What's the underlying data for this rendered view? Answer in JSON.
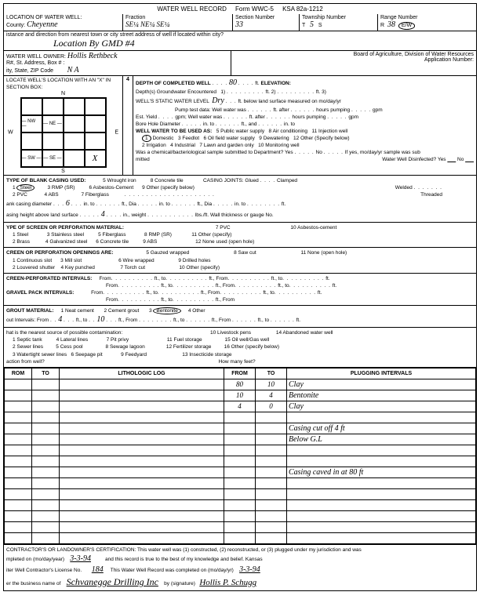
{
  "header": {
    "title": "WATER WELL RECORD",
    "form": "Form WWC-5",
    "ksa": "KSA 82a-1212"
  },
  "loc": {
    "label": "LOCATION OF WATER WELL:",
    "county_label": "County:",
    "county": "Cheyenne",
    "fraction_label": "Fraction",
    "fraction": "SE¼ NE¼ SE¼",
    "section_label": "Section Number",
    "section": "33",
    "township_label": "Township Number",
    "township_t": "T",
    "township": "5",
    "township_s": "S",
    "range_label": "Range Number",
    "range_r": "R",
    "range": "38",
    "range_ew": "E/W"
  },
  "street": {
    "label": "istance and direction from nearest town or city street address of well if located within city?",
    "value": "Location By GMD #4"
  },
  "owner": {
    "label": "WATER WELL OWNER:",
    "name": "Hollis Rethbeck",
    "addr_label": "R#, St. Address, Box # :",
    "city_label": "ity, State, ZIP Code",
    "na": "N A",
    "board": "Board of Agriculture, Division of Water Resources",
    "appno": "Application Number:"
  },
  "locate": {
    "label": "LOCATE WELL'S LOCATION WITH AN \"X\" IN SECTION BOX:",
    "n4": "4",
    "nw": "NW",
    "ne": "NE",
    "sw": "SW",
    "se": "SE",
    "x": "X",
    "N": "N",
    "S": "S",
    "E": "E",
    "W": "W"
  },
  "depth": {
    "title": "DEPTH OF COMPLETED WELL",
    "depth_val": "80",
    "ft": "ft.",
    "elev": "ELEVATION:",
    "groundwater": "Depth(s) Groundwater Encountered",
    "l1": "1)",
    "l2": "ft. 2)",
    "l3": "ft. 3)",
    "static_label": "WELL'S STATIC WATER LEVEL",
    "static": "Dry",
    "static_after": "ft. below land surface measured on mo/day/yr",
    "pump": "Pump test data:  Well water was",
    "pump_after": "ft. after",
    "hours": "hours pumping",
    "gpm": "gpm",
    "est": "Est. Yield",
    "gpm2": "gpm; Well water was",
    "bore": "Bore Hole Diameter",
    "in_to": "in. to",
    "ft_and": "ft., and",
    "in_to2": "in. to",
    "usedas": "WELL WATER TO BE USED AS:",
    "u1": "1 Domestic",
    "u2": "2 Irrigation",
    "u3": "3 Feedlot",
    "u4": "4 Industrial",
    "u5": "5 Public water supply",
    "u6": "6 Oil field water supply",
    "u7": "7 Lawn and garden only",
    "u8": "8 Air conditioning",
    "u9": "9 Dewatering",
    "u10": "10 Monitoring well",
    "u11": "11 Injection well",
    "u12": "12 Other (Specify below)",
    "chem": "Was a chemical/bacteriological sample submitted to Department? Yes",
    "chem_no": "No",
    "chem_if": "If yes, mo/day/yr sample was sub",
    "mitted": "mitted",
    "disinfect": "Water Well Disinfected?  Yes",
    "dis_no": "No"
  },
  "casing": {
    "title": "TYPE OF BLANK CASING USED:",
    "c1": "Steel",
    "c2": "2 PVC",
    "c3": "3 RMP (SR)",
    "c4": "4 ABS",
    "c5": "5 Wrought iron",
    "c6": "6 Asbestos-Cement",
    "c7": "7 Fiberglass",
    "c8": "8 Concrete tile",
    "c9": "9 Other (specify below)",
    "joints": "CASING JOINTS: Glued",
    "clamped": "Clamped",
    "welded": "Welded",
    "threaded": "Threaded",
    "dia_label": "ank casing diameter",
    "dia": "6",
    "dia_after": "in. to",
    "ft_dia": "ft., Dia",
    "in_to": "in. to",
    "height_label": "asing height above land surface",
    "height": "4",
    "weight": "in., weight",
    "lbs": "lbs./ft. Wall thickness or gauge No."
  },
  "screen": {
    "title": "YPE OF SCREEN OR PERFORATION MATERIAL:",
    "s1": "1 Steel",
    "s2": "2 Brass",
    "s3": "3 Stainless steel",
    "s4": "4 Galvanized steel",
    "s5": "5 Fiberglass",
    "s6": "6 Concrete tile",
    "s7": "7 PVC",
    "s8": "8 RMP (SR)",
    "s9": "9 ABS",
    "s10": "10 Asbestos-cement",
    "s11": "11 Other (specify)",
    "s12": "12 None used (open hole)"
  },
  "openings": {
    "title": "CREEN OR PERFORATION OPENINGS ARE:",
    "o1": "1 Continuous slot",
    "o2": "2 Louvered shutter",
    "o3": "3 Mill slot",
    "o4": "4 Key punched",
    "o5": "5 Gauzed wrapped",
    "o6": "6 Wire wrapped",
    "o7": "7 Torch cut",
    "o8": "8 Saw cut",
    "o9": "9 Drilled holes",
    "o10": "10 Other (specify)",
    "o11": "11 None (open hole)"
  },
  "intervals": {
    "title": "CREEN-PERFORATED INTERVALS:",
    "from": "From",
    "to": "ft., to",
    "ft_from": "ft., From",
    "ft_to": "ft., to",
    "ft": "ft.",
    "gravel": "GRAVEL PACK INTERVALS:"
  },
  "grout": {
    "title": "GROUT MATERIAL:",
    "g1": "1 Neat cement",
    "g2": "2 Cement grout",
    "g3": "Bentonite",
    "g4": "4 Other",
    "int_label": "out Intervals:    From",
    "from": "4",
    "to_label": "ft., to",
    "to": "10",
    "ft_from": "ft., From",
    "ft_to": "ft., to",
    "ft": "ft."
  },
  "contam": {
    "title": "hat is the nearest source of possible contamination:",
    "c1": "1 Septic tank",
    "c2": "2 Sewer lines",
    "c3": "3 Watertight sewer lines",
    "c4": "4 Lateral lines",
    "c5": "5 Cess pool",
    "c6": "6 Seepage pit",
    "c7": "7 Pit privy",
    "c8": "8 Sewage lagoon",
    "c9": "9 Feedyard",
    "c10": "10 Livestock pens",
    "c11": "11 Fuel storage",
    "c12": "12 Fertilizer storage",
    "c13": "13 Insecticide storage",
    "c14": "14 Abandoned water well",
    "c15": "15 Oil well/Gas well",
    "c16": "16 Other (specify below)",
    "action": "action from well?",
    "howmany": "How many feet?"
  },
  "log": {
    "h_rom": "ROM",
    "h_to": "TO",
    "h_lith": "LITHOLOGIC LOG",
    "h_from": "FROM",
    "h_to2": "TO",
    "h_plug": "PLUGGING INTERVALS",
    "rows": [
      {
        "from": "80",
        "to": "10",
        "plug": "Clay"
      },
      {
        "from": "10",
        "to": "4",
        "plug": "Bentonite"
      },
      {
        "from": "4",
        "to": "0",
        "plug": "Clay"
      },
      {
        "from": "",
        "to": "",
        "plug": ""
      },
      {
        "from": "",
        "to": "",
        "plug": "Casing cut off 4 ft"
      },
      {
        "from": "",
        "to": "",
        "plug": "Below G.L"
      },
      {
        "from": "",
        "to": "",
        "plug": ""
      },
      {
        "from": "",
        "to": "",
        "plug": ""
      },
      {
        "from": "",
        "to": "",
        "plug": "Casing caved in at 80 ft"
      },
      {
        "from": "",
        "to": "",
        "plug": ""
      },
      {
        "from": "",
        "to": "",
        "plug": ""
      },
      {
        "from": "",
        "to": "",
        "plug": ""
      },
      {
        "from": "",
        "to": "",
        "plug": ""
      },
      {
        "from": "",
        "to": "",
        "plug": ""
      },
      {
        "from": "",
        "to": "",
        "plug": ""
      }
    ]
  },
  "cert": {
    "title": "CONTRACTOR'S OR LANDOWNER'S CERTIFICATION: This water well was (1) constructed, (2) reconstructed, or (3) plugged under my jurisdiction and was",
    "line2a": "mpleted on (mo/day/year)",
    "date1": "3-3-94",
    "line2b": "and this record is true to the best of my knowledge and belief.  Kansas",
    "line3a": "iter Well Contractor's License No.",
    "lic": "184",
    "line3b": "This Water Well Record was completed on (mo/day/yr)",
    "date2": "3-3-94",
    "line4a": "er the business name of",
    "biz": "Schvanegge Drilling Inc",
    "sig_label": "by (signature)",
    "sig": "Hollis P. Schugg"
  },
  "side": {
    "office": "OFFICE USE ONLY",
    "t": "T",
    "r": "R",
    "sec": "SEC",
    "w": "W"
  }
}
